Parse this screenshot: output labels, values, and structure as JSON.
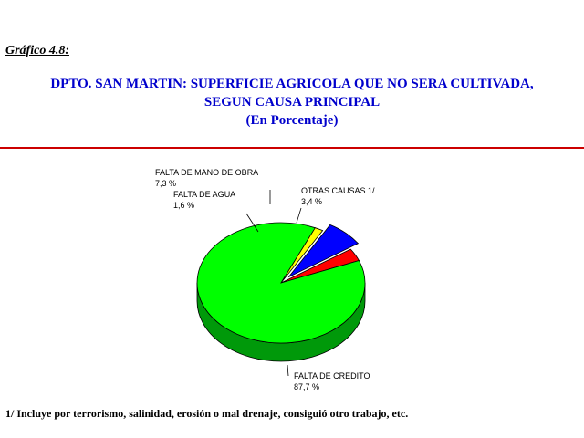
{
  "figure_label": "Gráfico 4.8:",
  "title_lines": [
    "DPTO. SAN MARTIN: SUPERFICIE AGRICOLA QUE NO SERA CULTIVADA,",
    "SEGUN CAUSA PRINCIPAL",
    "(En Porcentaje)"
  ],
  "footnote": "1/ Incluye por terrorismo, salinidad, erosión o mal drenaje, consiguió otro trabajo, etc.",
  "colors": {
    "title": "#0000cc",
    "rule": "#cc0000"
  },
  "chart_data": {
    "type": "pie",
    "slices": [
      {
        "name": "FALTA DE CREDITO",
        "value": 87.7,
        "value_label": "87,7 %",
        "color": "#00ff00",
        "side_color": "#00990a",
        "exploded": false
      },
      {
        "name": "FALTA DE AGUA",
        "value": 1.6,
        "value_label": "1,6 %",
        "color": "#ffff00",
        "side_color": "#999900",
        "exploded": false
      },
      {
        "name": "FALTA DE MANO DE OBRA",
        "value": 7.3,
        "value_label": "7,3 %",
        "color": "#0000ff",
        "side_color": "#000099",
        "exploded": true
      },
      {
        "name": "OTRAS CAUSAS 1/",
        "value": 3.4,
        "value_label": "3,4 %",
        "color": "#ff0000",
        "side_color": "#990000",
        "exploded": false
      }
    ]
  }
}
